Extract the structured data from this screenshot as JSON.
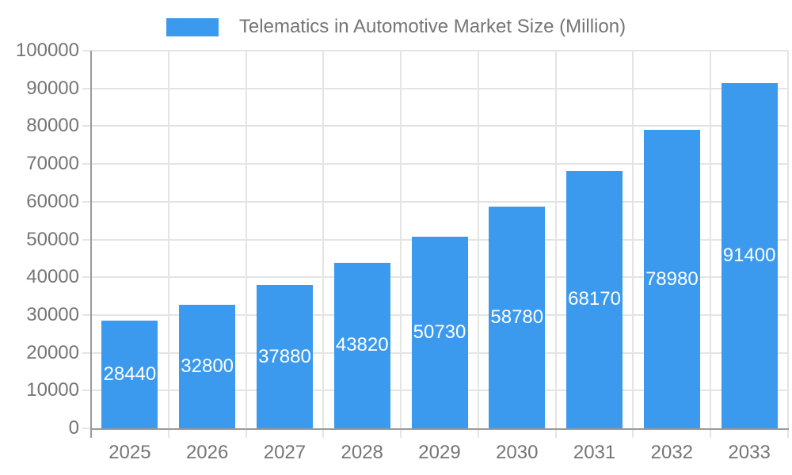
{
  "legend": {
    "label": "Telematics in Automotive Market Size (Million)"
  },
  "chart_data": {
    "type": "bar",
    "title": "Telematics in Automotive Market Size (Million)",
    "categories": [
      "2025",
      "2026",
      "2027",
      "2028",
      "2029",
      "2030",
      "2031",
      "2032",
      "2033"
    ],
    "values": [
      28440,
      32800,
      37880,
      43820,
      50730,
      58780,
      68170,
      78980,
      91400
    ],
    "series": [
      {
        "name": "Telematics in Automotive Market Size (Million)",
        "values": [
          28440,
          32800,
          37880,
          43820,
          50730,
          58780,
          68170,
          78980,
          91400
        ]
      }
    ],
    "xlabel": "",
    "ylabel": "",
    "ylim": [
      0,
      100000
    ],
    "ytick_step": 10000,
    "yticks": [
      0,
      10000,
      20000,
      30000,
      40000,
      50000,
      60000,
      70000,
      80000,
      90000,
      100000
    ],
    "grid": true,
    "legend_position": "top",
    "bar_labels_inside": true,
    "colors": {
      "bar": "#3B9AEE",
      "bar_label_text": "#ffffff",
      "axis_text": "#757575",
      "grid_line": "#e4e4e4",
      "axis_line": "#9a9a9a",
      "background": "#ffffff"
    }
  }
}
